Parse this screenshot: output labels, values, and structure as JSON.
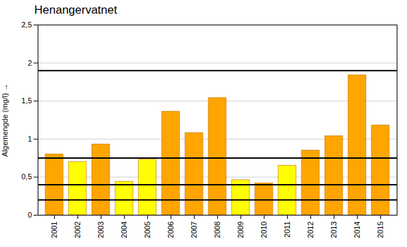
{
  "chart_data": {
    "type": "bar",
    "title": "Henangervatnet",
    "ylabel": "Algemengde (mg/l)",
    "categories": [
      "2001",
      "2002",
      "2003",
      "2004",
      "2005",
      "2006",
      "2007",
      "2008",
      "2009",
      "2010",
      "2011",
      "2012",
      "2013",
      "2014",
      "2015"
    ],
    "values": [
      0.8,
      0.7,
      0.93,
      0.44,
      0.73,
      1.36,
      1.08,
      1.54,
      0.46,
      0.42,
      0.65,
      0.85,
      1.04,
      1.84,
      1.18
    ],
    "colors": [
      "#FFA500",
      "#FFFF00",
      "#FFA500",
      "#FFFF00",
      "#FFFF00",
      "#FFA500",
      "#FFA500",
      "#FFA500",
      "#FFFF00",
      "#FFA500",
      "#FFFF00",
      "#FFA500",
      "#FFA500",
      "#FFA500",
      "#FFA500"
    ],
    "hlines": [
      0.2,
      0.4,
      0.75,
      1.9
    ],
    "ylim": [
      0,
      2.5
    ],
    "yticks": [
      0,
      {
        "value": 0.5,
        "label": "0,5"
      },
      1,
      {
        "value": 1.5,
        "label": "1,5"
      },
      2,
      {
        "value": 2.5,
        "label": "2,5"
      }
    ],
    "grid": true
  }
}
